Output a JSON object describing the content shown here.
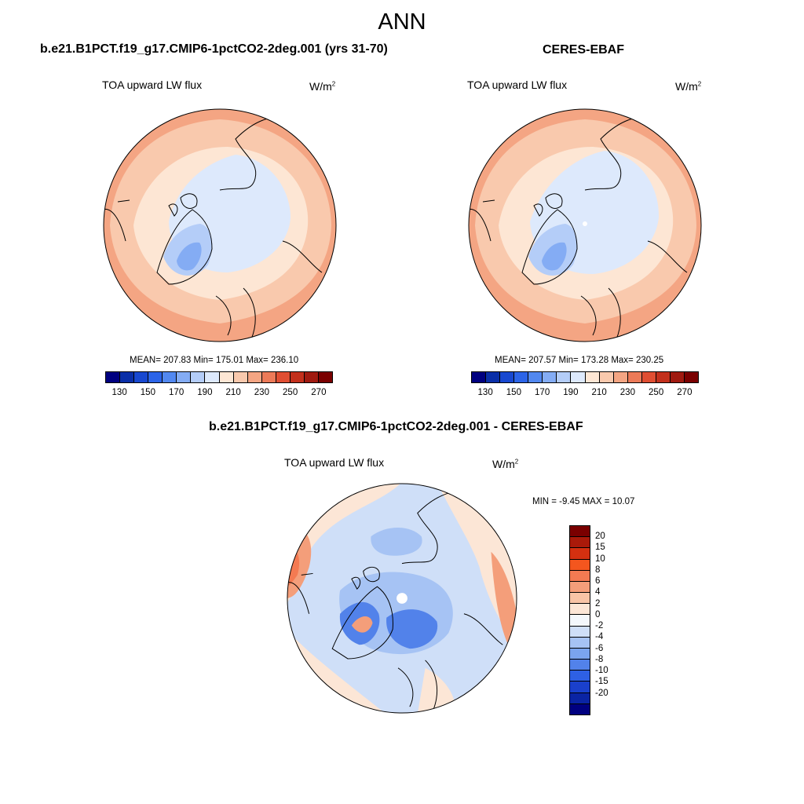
{
  "main_title": "ANN",
  "panels": [
    {
      "title": "b.e21.B1PCT.f19_g17.CMIP6-1pctCO2-2deg.001 (yrs 31-70)",
      "variable": "TOA upward LW flux",
      "unit_base": "W/m",
      "unit_exp": "2",
      "stats": "MEAN= 207.83  Min= 175.01  Max= 236.10"
    },
    {
      "title": "CERES-EBAF",
      "variable": "TOA upward LW flux",
      "unit_base": "W/m",
      "unit_exp": "2",
      "stats": "MEAN= 207.57  Min= 173.28  Max= 230.25"
    }
  ],
  "diff_panel": {
    "title": "b.e21.B1PCT.f19_g17.CMIP6-1pctCO2-2deg.001 - CERES-EBAF",
    "variable": "TOA upward LW flux",
    "unit_base": "W/m",
    "unit_exp": "2",
    "minmax": "MIN =  -9.45 MAX =  10.07"
  },
  "colorbar_main": {
    "colors": [
      "#000080",
      "#0a2fa8",
      "#1848d0",
      "#2c64e8",
      "#5288f0",
      "#84acf4",
      "#b4cdf8",
      "#dde9fc",
      "#fde6d4",
      "#f9c9ad",
      "#f4a583",
      "#ec7a58",
      "#e04e32",
      "#c3301c",
      "#a01a10",
      "#7a0000"
    ],
    "labels": [
      "130",
      "150",
      "170",
      "190",
      "210",
      "230",
      "250",
      "270"
    ]
  },
  "colorbar_diff": {
    "colors": [
      "#7a0000",
      "#aa1a0a",
      "#d43010",
      "#f4561e",
      "#f47a52",
      "#f49e7a",
      "#f8c4a6",
      "#fce6d6",
      "#f4f8fc",
      "#cfdff8",
      "#a6c3f4",
      "#7aa4ee",
      "#5282ea",
      "#2e60e4",
      "#1a40cc",
      "#0a24a4",
      "#000080"
    ],
    "labels": [
      "20",
      "15",
      "10",
      "8",
      "6",
      "4",
      "2",
      "0",
      "-2",
      "-4",
      "-6",
      "-8",
      "-10",
      "-15",
      "-20"
    ]
  },
  "map_colors": {
    "r1": "#f4a583",
    "r2": "#f9c9ad",
    "r3": "#fde6d4",
    "r4": "#dde9fc",
    "r5": "#b4cdf8",
    "r6": "#84acf4",
    "d_warm3": "#f47a52",
    "d_warm2": "#f49e7a",
    "d_warm1": "#fce6d6",
    "d_cool1": "#cfdff8",
    "d_cool2": "#a6c3f4",
    "d_cool3": "#5282ea"
  }
}
